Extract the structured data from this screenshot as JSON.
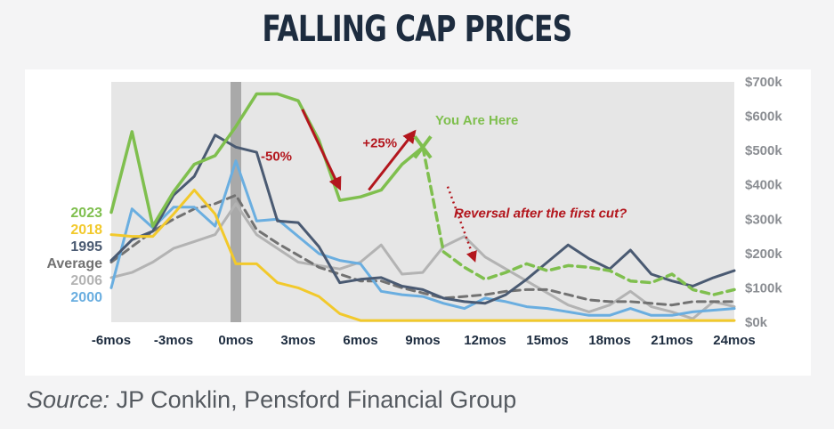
{
  "title": "FALLING CAP PRICES",
  "source": {
    "prefix": "Source:",
    "text": " JP Conklin, Pensford Financial Group"
  },
  "colors": {
    "band": "#e6e6e6",
    "event_bar": "#a9a9a9",
    "arrow": "#b3161d",
    "title": "#1d2c3f"
  },
  "chart_data": {
    "type": "line",
    "x_tick_labels": [
      "-6mos",
      "-3mos",
      "0mos",
      "3mos",
      "6mos",
      "9mos",
      "12mos",
      "15mos",
      "18mos",
      "21mos",
      "24mos"
    ],
    "x_ticks": [
      -6,
      -3,
      0,
      3,
      6,
      9,
      12,
      15,
      18,
      21,
      24
    ],
    "xlim": [
      -6,
      24
    ],
    "y_tick_labels": [
      "$0k",
      "$100k",
      "$200k",
      "$300k",
      "$400k",
      "$500k",
      "$600k",
      "$700k"
    ],
    "y_ticks": [
      0,
      100,
      200,
      300,
      400,
      500,
      600,
      700
    ],
    "ylim": [
      0,
      700
    ],
    "y_axis_side": "right",
    "grid": false,
    "legend": "left",
    "series": [
      {
        "name": "2006",
        "color": "#b3b3b3",
        "width": 3,
        "dash": "",
        "x": [
          -6,
          -5,
          -4,
          -3,
          -2,
          -1,
          0,
          1,
          2,
          3,
          4,
          5,
          6,
          7,
          8,
          9,
          10,
          11,
          12,
          13,
          14,
          15,
          16,
          17,
          18,
          19,
          20,
          21,
          22,
          23,
          24
        ],
        "values": [
          130,
          145,
          175,
          215,
          235,
          255,
          345,
          255,
          215,
          175,
          165,
          155,
          175,
          225,
          140,
          145,
          220,
          250,
          190,
          155,
          120,
          85,
          50,
          30,
          50,
          90,
          45,
          30,
          10,
          60,
          45
        ]
      },
      {
        "name": "Average",
        "color": "#727272",
        "width": 3,
        "dash": "9 6",
        "x": [
          -6,
          -5,
          -4,
          -3,
          -2,
          -1,
          0,
          1,
          2,
          3,
          4,
          5,
          6,
          7,
          8,
          9,
          10,
          11,
          12,
          13,
          14,
          15,
          16,
          17,
          18,
          19,
          20,
          21,
          22,
          23,
          24
        ],
        "values": [
          175,
          220,
          265,
          300,
          330,
          345,
          370,
          270,
          230,
          195,
          160,
          140,
          120,
          120,
          100,
          85,
          70,
          75,
          80,
          90,
          95,
          95,
          80,
          65,
          60,
          60,
          55,
          50,
          60,
          60,
          60
        ]
      },
      {
        "name": "2000",
        "color": "#6aaee0",
        "width": 3,
        "dash": "",
        "x": [
          -6,
          -5,
          -4,
          -3,
          -2,
          -1,
          0,
          1,
          2,
          3,
          4,
          5,
          6,
          7,
          8,
          9,
          10,
          11,
          12,
          13,
          14,
          15,
          16,
          17,
          18,
          19,
          20,
          21,
          22,
          23,
          24
        ],
        "values": [
          100,
          330,
          275,
          335,
          335,
          280,
          470,
          295,
          300,
          250,
          200,
          180,
          170,
          90,
          80,
          75,
          55,
          40,
          70,
          60,
          45,
          40,
          30,
          20,
          20,
          40,
          20,
          20,
          30,
          35,
          40
        ]
      },
      {
        "name": "1995",
        "color": "#4a5a72",
        "width": 3,
        "dash": "",
        "x": [
          -6,
          -5,
          -4,
          -3,
          -2,
          -1,
          0,
          1,
          2,
          3,
          4,
          5,
          6,
          7,
          8,
          9,
          10,
          11,
          12,
          13,
          14,
          15,
          16,
          17,
          18,
          19,
          20,
          21,
          22,
          23,
          24
        ],
        "values": [
          180,
          240,
          265,
          370,
          425,
          545,
          510,
          495,
          295,
          290,
          220,
          115,
          125,
          130,
          105,
          95,
          70,
          60,
          55,
          80,
          125,
          175,
          225,
          185,
          155,
          210,
          140,
          120,
          105,
          130,
          150
        ]
      },
      {
        "name": "2018",
        "color": "#f2c92b",
        "width": 3,
        "dash": "",
        "x": [
          -6,
          -5,
          -4,
          -3,
          -2,
          -1,
          0,
          1,
          2,
          3,
          4,
          5,
          6,
          7,
          8,
          9,
          10,
          11,
          12,
          13,
          14,
          15,
          16,
          17,
          18,
          19,
          20,
          21,
          22,
          23,
          24
        ],
        "values": [
          255,
          250,
          250,
          315,
          385,
          315,
          170,
          170,
          115,
          100,
          75,
          25,
          5,
          5,
          5,
          5,
          5,
          5,
          5,
          5,
          5,
          5,
          5,
          5,
          5,
          5,
          5,
          5,
          5,
          5,
          5
        ]
      },
      {
        "name": "2023",
        "color": "#7fbf4e",
        "width": 3.5,
        "dash": "",
        "x": [
          -6,
          -5,
          -4,
          -3,
          -2,
          -1,
          0,
          1,
          2,
          3,
          4,
          5,
          6,
          7,
          8,
          9
        ],
        "values": [
          320,
          555,
          280,
          380,
          460,
          485,
          570,
          665,
          665,
          645,
          530,
          355,
          365,
          385,
          460,
          510
        ]
      },
      {
        "name": "2023",
        "color": "#7fbf4e",
        "width": 3.5,
        "dash": "9 6",
        "show_label": false,
        "x": [
          9,
          10,
          11,
          12,
          13,
          14,
          15,
          16,
          17,
          18,
          19,
          20,
          21,
          22,
          23,
          24
        ],
        "values": [
          510,
          205,
          160,
          125,
          145,
          170,
          150,
          165,
          160,
          150,
          120,
          115,
          140,
          95,
          80,
          95
        ]
      }
    ],
    "legend_order": [
      "2023",
      "2018",
      "1995",
      "Average",
      "2006",
      "2000"
    ],
    "annotations": {
      "drop": "-50%",
      "rise": "+25%",
      "you_are_here": "You Are Here",
      "reversal": "Reversal after the first cut?"
    },
    "event_x": 0,
    "you_are_here_x": 9
  }
}
